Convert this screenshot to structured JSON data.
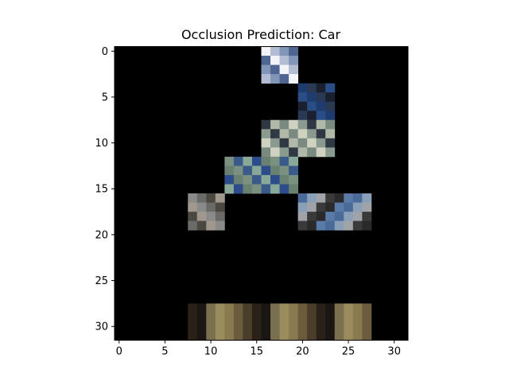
{
  "chart_data": {
    "type": "heatmap",
    "title": "Occlusion Prediction: Car",
    "xlabel": "",
    "ylabel": "",
    "grid": false,
    "size": [
      32,
      32
    ],
    "x_ticks": [
      "0",
      "5",
      "10",
      "15",
      "20",
      "25",
      "30"
    ],
    "y_ticks": [
      "0",
      "5",
      "10",
      "15",
      "20",
      "25",
      "30"
    ],
    "xlim": [
      -0.5,
      31.5
    ],
    "ylim": [
      31.5,
      -0.5
    ],
    "background_color": "#000000",
    "visible_blocks": [
      {
        "rows": [
          0,
          3
        ],
        "cols": [
          16,
          19
        ],
        "colors": [
          "#f3f4f8",
          "#b2bcd2",
          "#8296b8",
          "#4e6691"
        ]
      },
      {
        "rows": [
          4,
          7
        ],
        "cols": [
          20,
          23
        ],
        "colors": [
          "#2a4d85",
          "#1e3c70",
          "#2a3a55",
          "#1a2030"
        ]
      },
      {
        "rows": [
          8,
          11
        ],
        "cols": [
          16,
          23
        ],
        "colors": [
          "#7a8a80",
          "#8a9a8f",
          "#b0b8a8",
          "#cfd2c0",
          "#303844"
        ]
      },
      {
        "rows": [
          12,
          15
        ],
        "cols": [
          12,
          19
        ],
        "colors": [
          "#7a9080",
          "#8aa898",
          "#6a8070",
          "#3a5a8a",
          "#2c4c8c"
        ]
      },
      {
        "rows": [
          16,
          19
        ],
        "cols": [
          8,
          11
        ],
        "colors": [
          "#8a8a8a",
          "#6a6a66",
          "#4a4840",
          "#a0988c"
        ]
      },
      {
        "rows": [
          16,
          19
        ],
        "cols": [
          20,
          27
        ],
        "colors": [
          "#5a7aa8",
          "#4a6a98",
          "#8aa0b8",
          "#a0a4a8",
          "#3a3a3a",
          "#2a2a2a"
        ]
      },
      {
        "rows": [
          28,
          31
        ],
        "cols": [
          8,
          27
        ],
        "colors": [
          "#1a1612",
          "#2a2218",
          "#4a3e2a",
          "#6a5c3c",
          "#8a7a50",
          "#9a8c5c",
          "#7a7050"
        ]
      }
    ]
  }
}
